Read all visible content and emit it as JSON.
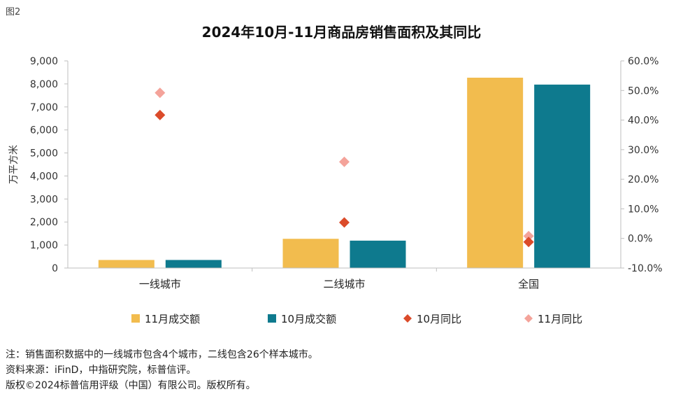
{
  "figure_label": "图2",
  "chart_data": {
    "type": "bar",
    "title": "2024年10月-11月商品房销售面积及其同比",
    "categories": [
      "一线城市",
      "二线城市",
      "全国"
    ],
    "ylabel": "万平方米",
    "ylim": [
      0,
      9000
    ],
    "yticks": [
      "0",
      "1,000",
      "2,000",
      "3,000",
      "4,000",
      "5,000",
      "6,000",
      "7,000",
      "8,000",
      "9,000"
    ],
    "y2lim": [
      -10,
      60
    ],
    "y2ticks": [
      "-10.0%",
      "0.0%",
      "10.0%",
      "20.0%",
      "30.0%",
      "40.0%",
      "50.0%",
      "60.0%"
    ],
    "grid": false,
    "legend_position": "bottom",
    "series": [
      {
        "name": "11月成交额",
        "kind": "bar",
        "axis": "left",
        "color": "#F2BC4E",
        "values": [
          350,
          1270,
          8270
        ]
      },
      {
        "name": "10月成交额",
        "kind": "bar",
        "axis": "left",
        "color": "#0E7A8E",
        "values": [
          350,
          1190,
          7970
        ]
      },
      {
        "name": "10月同比",
        "kind": "marker",
        "axis": "right",
        "color": "#DB4B2A",
        "values": [
          41.7,
          5.4,
          -1.2
        ]
      },
      {
        "name": "11月同比",
        "kind": "marker",
        "axis": "right",
        "color": "#F4A39A",
        "values": [
          49.2,
          25.9,
          0.8
        ]
      }
    ]
  },
  "notes": [
    "注：销售面积数据中的一线城市包含4个城市，二线包含26个样本城市。",
    "资料来源：iFinD，中指研究院，标普信评。",
    "版权©2024标普信用评级（中国）有限公司。版权所有。"
  ]
}
